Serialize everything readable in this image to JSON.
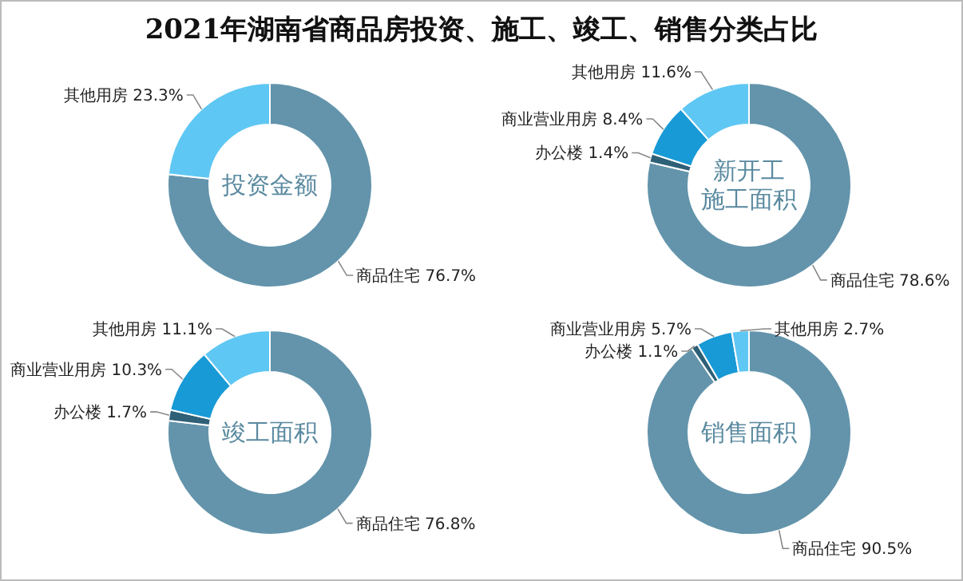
{
  "chart_data": [
    {
      "type": "donut",
      "title": "投资金额",
      "annotations": [
        "2021年湖南省商品房投资、施工、竣工、销售分类占比"
      ],
      "categories": [
        "商品住宅",
        "其他用房"
      ],
      "values": [
        76.7,
        23.3
      ],
      "value_labels": [
        "76.7%",
        "23.3%"
      ],
      "colors": [
        "#6394ab",
        "#5fc7f3"
      ],
      "legend": false
    },
    {
      "type": "donut",
      "title": "新开工施工面积",
      "categories": [
        "商品住宅",
        "办公楼",
        "商业营业用房",
        "其他用房"
      ],
      "values": [
        78.6,
        1.4,
        8.4,
        11.6
      ],
      "value_labels": [
        "78.6%",
        "1.4%",
        "8.4%",
        "11.6%"
      ],
      "colors": [
        "#6394ab",
        "#2e6077",
        "#189ad6",
        "#5fc7f3"
      ],
      "legend": false
    },
    {
      "type": "donut",
      "title": "竣工面积",
      "categories": [
        "商品住宅",
        "办公楼",
        "商业营业用房",
        "其他用房"
      ],
      "values": [
        76.8,
        1.7,
        10.3,
        11.1
      ],
      "value_labels": [
        "76.8%",
        "1.7%",
        "10.3%",
        "11.1%"
      ],
      "colors": [
        "#6394ab",
        "#2e6077",
        "#189ad6",
        "#5fc7f3"
      ],
      "legend": false
    },
    {
      "type": "donut",
      "title": "销售面积",
      "categories": [
        "商品住宅",
        "办公楼",
        "商业营业用房",
        "其他用房"
      ],
      "values": [
        90.5,
        1.1,
        5.7,
        2.7
      ],
      "value_labels": [
        "90.5%",
        "1.1%",
        "5.7%",
        "2.7%"
      ],
      "colors": [
        "#6394ab",
        "#2e6077",
        "#189ad6",
        "#5fc7f3"
      ],
      "legend": false
    }
  ]
}
